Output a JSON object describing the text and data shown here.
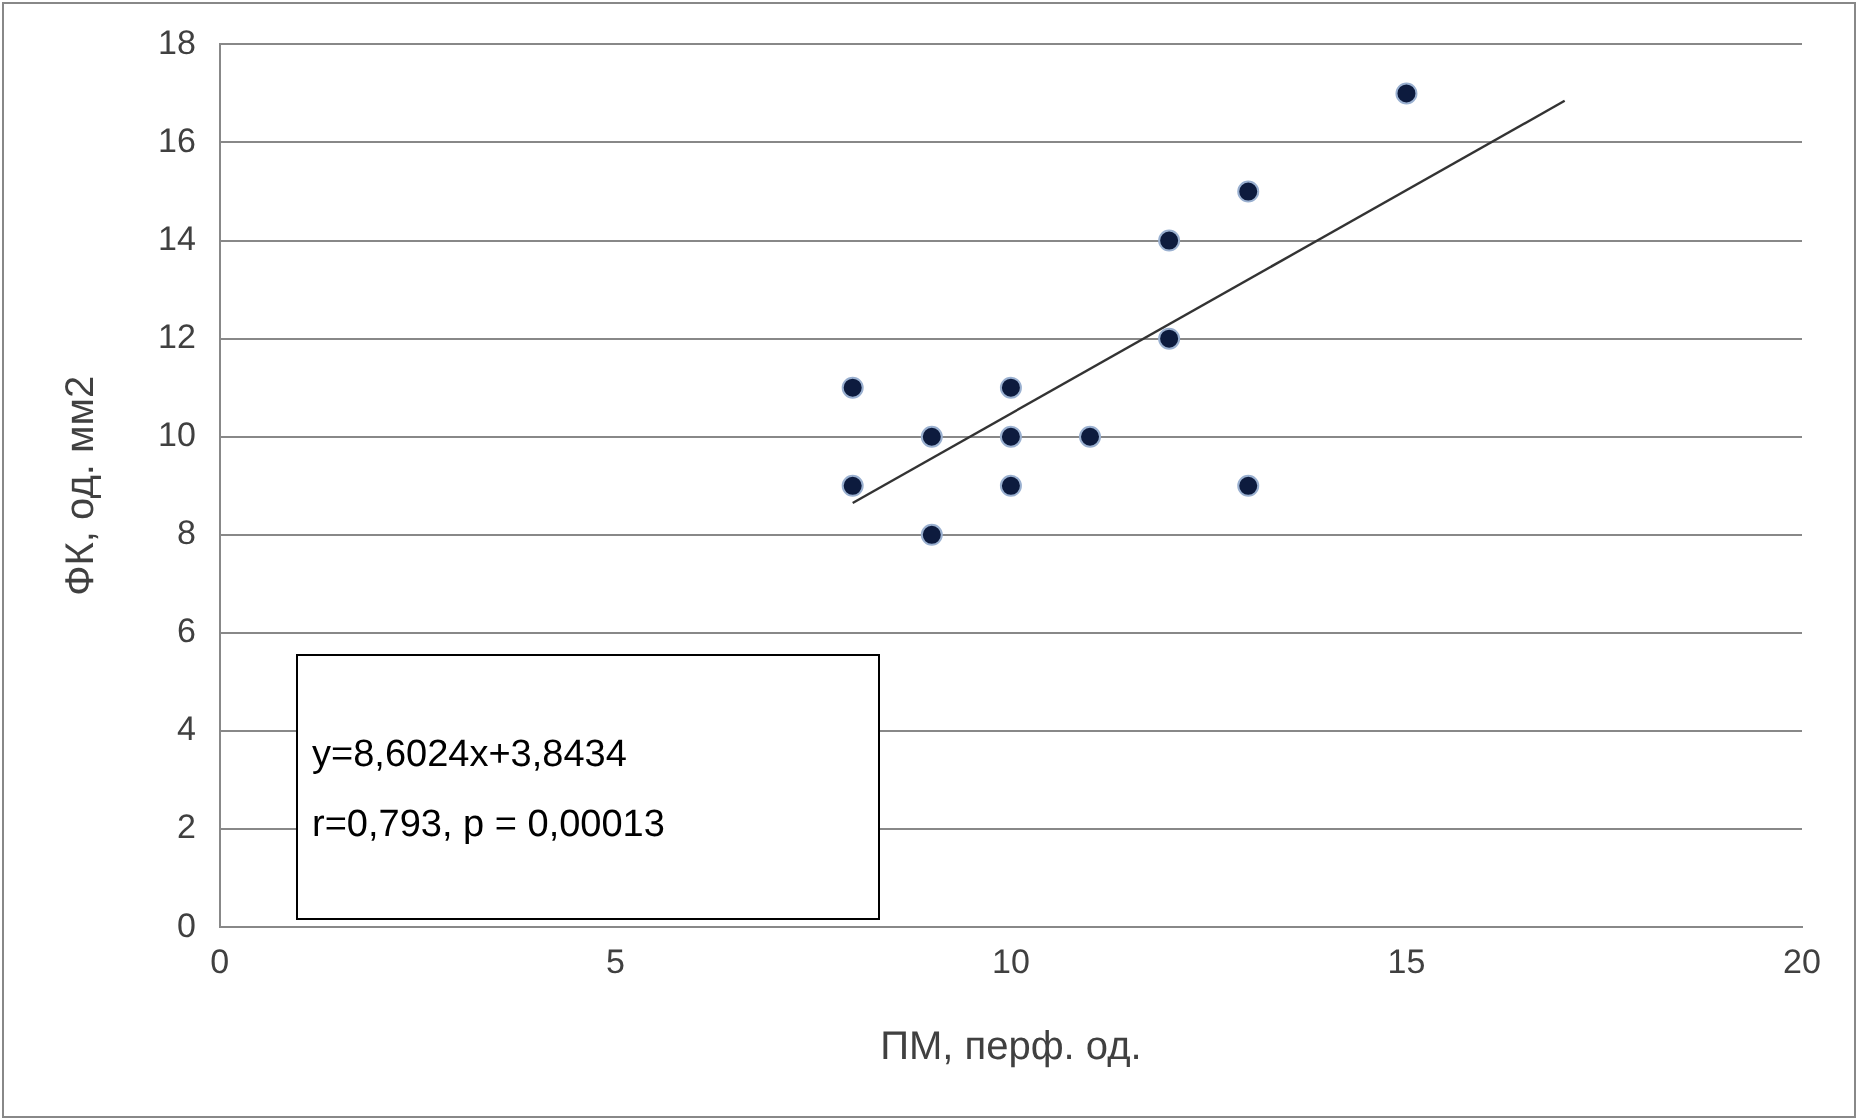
{
  "chart_data": {
    "type": "scatter",
    "xlabel": "ПМ, перф. од.",
    "ylabel": "ФК, од. мм2",
    "xlim": [
      0,
      20
    ],
    "xticks": [
      0,
      5,
      10,
      15,
      20
    ],
    "ylim": [
      0,
      18
    ],
    "yticks": [
      0,
      2,
      4,
      6,
      8,
      10,
      12,
      14,
      16,
      18
    ],
    "grid": "y",
    "legend": false,
    "marker": "circle",
    "series": [
      {
        "color": "#0d1b3e",
        "x": [
          8,
          8,
          9,
          9,
          10,
          10,
          10,
          11,
          12,
          12,
          13,
          13,
          15
        ],
        "values": [
          11,
          9,
          10,
          8,
          11,
          10,
          9,
          10,
          14,
          12,
          15,
          9,
          17
        ]
      },
      {
        "type": "line",
        "color": "#333333",
        "marker": "none",
        "x": [
          8,
          17
        ],
        "values": [
          8.65,
          16.85
        ]
      }
    ],
    "annotations": [
      "y=8,6024x+3,8434",
      "r=0,793, p = 0,00013"
    ]
  }
}
